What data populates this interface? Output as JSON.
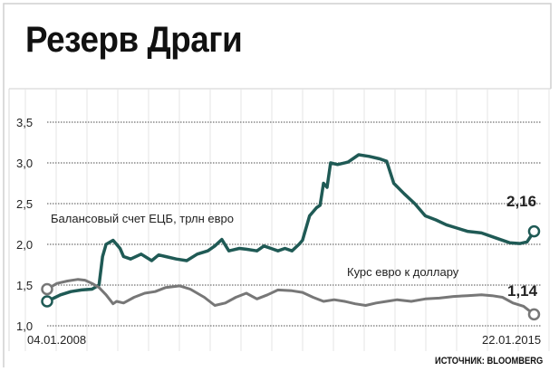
{
  "title": "Резерв Драги",
  "source": "ИСТОЧНИК: BLOOMBERG",
  "colors": {
    "balance_line": "#1f5a55",
    "eurusd_line": "#777777",
    "grid": "#888888",
    "frame": "#cfcfcf"
  },
  "chart_data": {
    "type": "line",
    "title": "Резерв Драги",
    "x_start_label": "04.01.2008",
    "x_end_label": "22.01.2015",
    "xlim": [
      2008.01,
      2015.06
    ],
    "ylim": [
      1.0,
      3.5
    ],
    "y_ticks": [
      "1,0",
      "1,5",
      "2,0",
      "2,5",
      "3,0",
      "3,5"
    ],
    "grid": true,
    "series": [
      {
        "name": "Балансовый счет ЕЦБ, трлн евро",
        "end_label": "2,16",
        "x": [
          2008.01,
          2008.2,
          2008.35,
          2008.5,
          2008.65,
          2008.75,
          2008.8,
          2008.85,
          2008.95,
          2009.05,
          2009.1,
          2009.2,
          2009.35,
          2009.5,
          2009.6,
          2009.7,
          2009.85,
          2010.0,
          2010.15,
          2010.3,
          2010.4,
          2010.5,
          2010.6,
          2010.75,
          2010.85,
          2011.0,
          2011.1,
          2011.2,
          2011.3,
          2011.4,
          2011.5,
          2011.6,
          2011.65,
          2011.75,
          2011.85,
          2011.9,
          2011.95,
          2012.0,
          2012.05,
          2012.15,
          2012.3,
          2012.45,
          2012.6,
          2012.75,
          2012.85,
          2012.95,
          2013.1,
          2013.25,
          2013.4,
          2013.55,
          2013.7,
          2013.85,
          2014.0,
          2014.2,
          2014.4,
          2014.6,
          2014.75,
          2014.85,
          2014.95
        ],
        "values": [
          1.3,
          1.38,
          1.42,
          1.44,
          1.45,
          1.5,
          1.85,
          2.0,
          2.05,
          1.95,
          1.85,
          1.82,
          1.88,
          1.8,
          1.87,
          1.85,
          1.82,
          1.8,
          1.88,
          1.92,
          1.98,
          2.06,
          1.92,
          1.95,
          1.94,
          1.92,
          1.98,
          1.95,
          1.92,
          1.95,
          1.92,
          2.0,
          2.05,
          2.35,
          2.45,
          2.48,
          2.75,
          2.7,
          3.0,
          2.98,
          3.01,
          3.1,
          3.08,
          3.05,
          3.02,
          2.75,
          2.62,
          2.5,
          2.35,
          2.3,
          2.24,
          2.2,
          2.16,
          2.14,
          2.08,
          2.02,
          2.01,
          2.03,
          2.16
        ]
      },
      {
        "name": "Курс евро к доллару",
        "end_label": "1,14",
        "x": [
          2008.01,
          2008.15,
          2008.3,
          2008.45,
          2008.55,
          2008.65,
          2008.75,
          2008.85,
          2008.95,
          2009.0,
          2009.1,
          2009.25,
          2009.4,
          2009.55,
          2009.7,
          2009.9,
          2010.05,
          2010.25,
          2010.4,
          2010.55,
          2010.7,
          2010.85,
          2011.0,
          2011.15,
          2011.3,
          2011.5,
          2011.65,
          2011.8,
          2011.95,
          2012.1,
          2012.25,
          2012.4,
          2012.55,
          2012.7,
          2012.85,
          2013.0,
          2013.2,
          2013.4,
          2013.6,
          2013.8,
          2014.0,
          2014.2,
          2014.35,
          2014.5,
          2014.65,
          2014.8,
          2014.95
        ],
        "values": [
          1.45,
          1.52,
          1.55,
          1.57,
          1.56,
          1.52,
          1.47,
          1.38,
          1.27,
          1.3,
          1.28,
          1.35,
          1.4,
          1.42,
          1.47,
          1.49,
          1.45,
          1.35,
          1.25,
          1.28,
          1.35,
          1.4,
          1.33,
          1.38,
          1.44,
          1.43,
          1.41,
          1.35,
          1.3,
          1.32,
          1.3,
          1.27,
          1.25,
          1.28,
          1.3,
          1.32,
          1.3,
          1.33,
          1.34,
          1.36,
          1.37,
          1.38,
          1.37,
          1.35,
          1.28,
          1.24,
          1.14
        ]
      }
    ]
  }
}
